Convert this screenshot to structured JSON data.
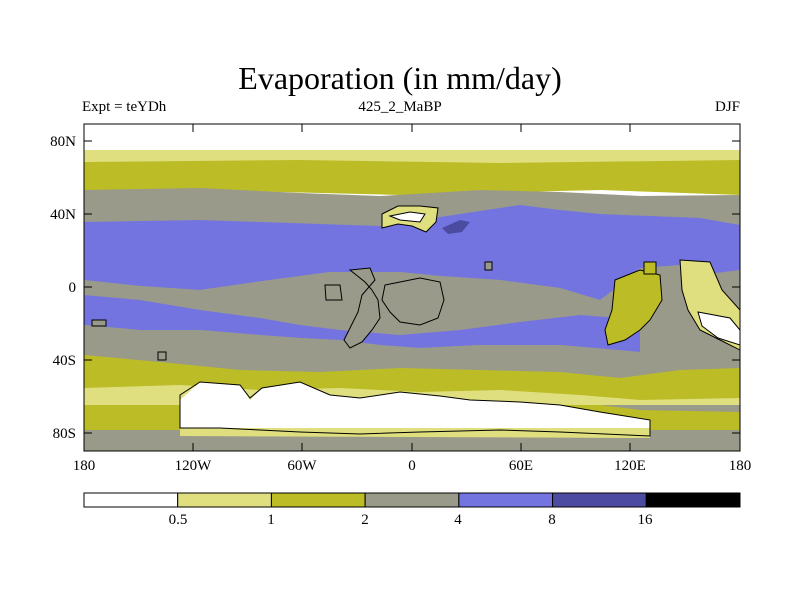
{
  "title": "Evaporation (in mm/day)",
  "subtitle_left": "Expt = teYDh",
  "subtitle_center": "425_2_MaBP",
  "subtitle_right": "DJF",
  "lat_labels": [
    "80N",
    "40N",
    "0",
    "40S",
    "80S"
  ],
  "lon_labels": [
    "180",
    "120W",
    "60W",
    "0",
    "60E",
    "120E",
    "180"
  ],
  "colorbar": {
    "levels": [
      "0.5",
      "1",
      "2",
      "4",
      "8",
      "16"
    ],
    "colors": [
      "#ffffff",
      "#dfdf80",
      "#bcbc26",
      "#9a9a8a",
      "#7474e0",
      "#4b4ba2",
      "#000000"
    ]
  }
}
